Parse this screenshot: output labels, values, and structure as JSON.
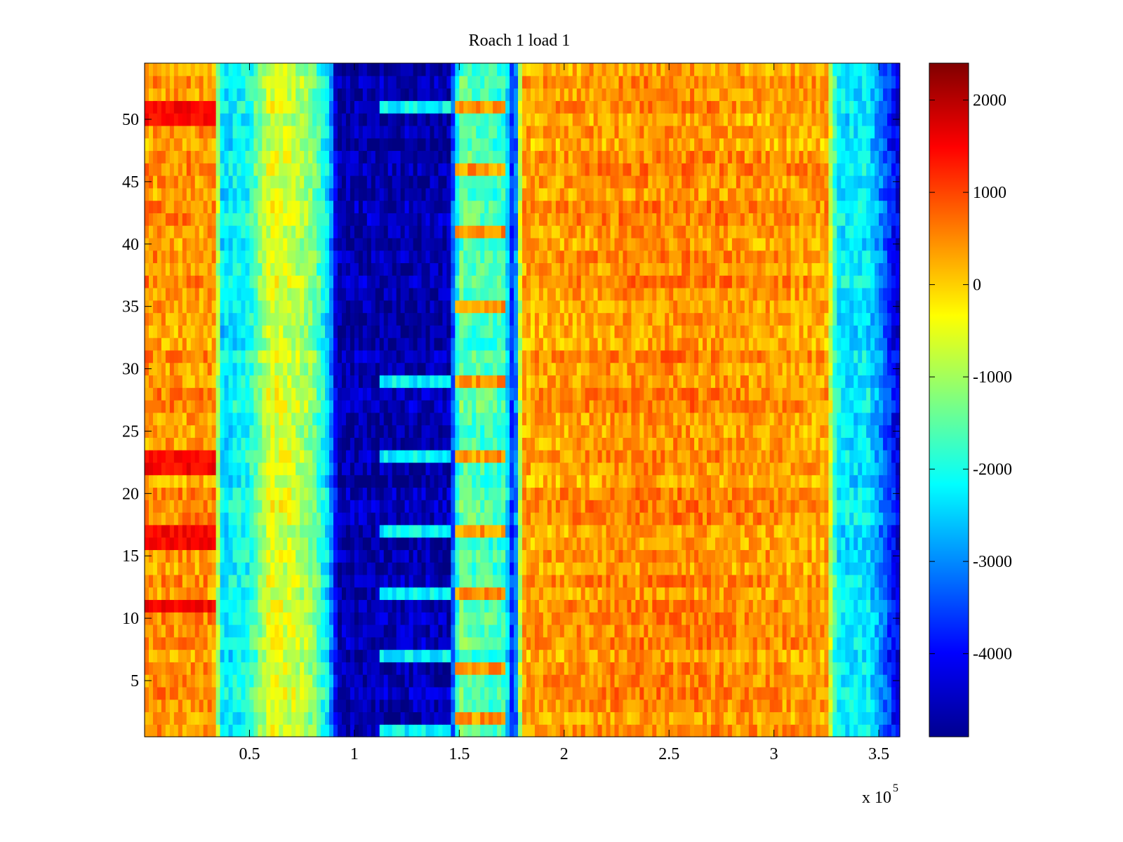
{
  "chart_data": {
    "type": "heatmap",
    "title": "Roach 1 load 1",
    "xlabel": "",
    "ylabel": "",
    "x_exponent_label": "x 10",
    "x_exponent_power": "5",
    "xlim": [
      0,
      3.6
    ],
    "ylim": [
      0.5,
      54.5
    ],
    "x_ticks": [
      0.5,
      1,
      1.5,
      2,
      2.5,
      3,
      3.5
    ],
    "x_tick_labels": [
      "0.5",
      "1",
      "1.5",
      "2",
      "2.5",
      "3",
      "3.5"
    ],
    "y_ticks": [
      5,
      10,
      15,
      20,
      25,
      30,
      35,
      40,
      45,
      50
    ],
    "y_tick_labels": [
      "5",
      "10",
      "15",
      "20",
      "25",
      "30",
      "35",
      "40",
      "45",
      "50"
    ],
    "rows": 54,
    "x_units_scale": 100000,
    "colormap": "jet",
    "clim": [
      -4900,
      2400
    ],
    "colorbar_ticks": [
      2000,
      1000,
      0,
      -1000,
      -2000,
      -3000,
      -4000
    ],
    "colorbar_tick_labels": [
      "2000",
      "1000",
      "0",
      "-1000",
      "-2000",
      "-3000",
      "-4000"
    ],
    "column_profile_x": [
      0,
      0.34,
      0.36,
      0.5,
      0.6,
      0.7,
      0.8,
      0.88,
      0.92,
      1.1,
      1.45,
      1.5,
      1.72,
      1.76,
      1.8,
      2.5,
      3.25,
      3.3,
      3.45,
      3.6
    ],
    "column_profile_value": [
      400,
      400,
      -2400,
      -2000,
      -500,
      -700,
      -1200,
      -2500,
      -4600,
      -4600,
      -4600,
      -1500,
      -1800,
      -4300,
      300,
      500,
      300,
      -2300,
      -2300,
      -4300
    ],
    "features": [
      {
        "region_x": [
          1.48,
          1.72
        ],
        "bright_rows": [
          2,
          6,
          12,
          17,
          23,
          29,
          35,
          41,
          46,
          51
        ],
        "value": 400
      },
      {
        "region_x": [
          1.12,
          1.45
        ],
        "bright_rows": [
          1,
          7,
          12,
          17,
          23,
          29,
          51
        ],
        "value": -2200
      },
      {
        "region_x": [
          0.0,
          0.34
        ],
        "hot_rows": [
          11,
          16,
          17,
          22,
          23,
          50,
          51
        ],
        "value": 1500
      }
    ]
  }
}
